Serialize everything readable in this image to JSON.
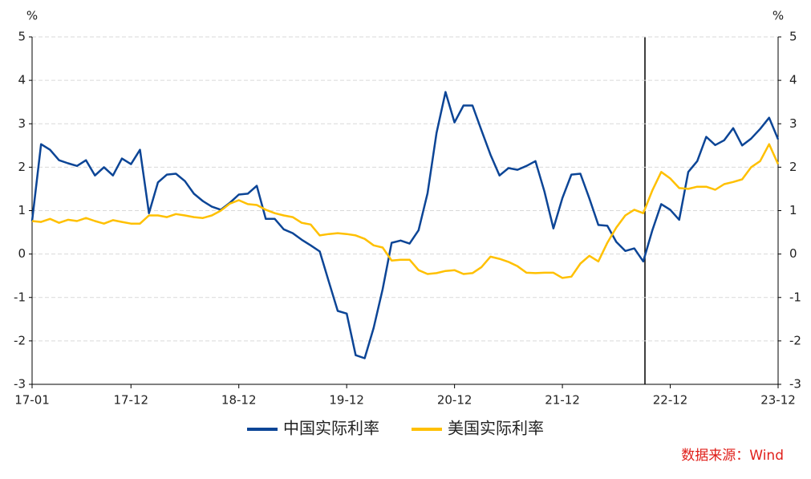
{
  "chart_data": {
    "type": "line",
    "y_label": "%",
    "y2_label": "%",
    "categories": [
      "17-01",
      null,
      null,
      null,
      null,
      null,
      null,
      null,
      null,
      null,
      null,
      "17-12",
      null,
      null,
      null,
      null,
      null,
      null,
      null,
      null,
      null,
      null,
      null,
      "18-12",
      null,
      null,
      null,
      null,
      null,
      null,
      null,
      null,
      null,
      null,
      null,
      "19-12",
      null,
      null,
      null,
      null,
      null,
      null,
      null,
      null,
      null,
      null,
      null,
      "20-12",
      null,
      null,
      null,
      null,
      null,
      null,
      null,
      null,
      null,
      null,
      null,
      "21-12",
      null,
      null,
      null,
      null,
      null,
      null,
      null,
      null,
      null,
      null,
      null,
      "22-12",
      null,
      null,
      null,
      null,
      null,
      null,
      null,
      null,
      null,
      null,
      null,
      "23-12"
    ],
    "series": [
      {
        "name": "中国实际利率",
        "color": "#0c4596",
        "values": [
          0.76,
          2.53,
          2.4,
          2.16,
          2.09,
          2.03,
          2.16,
          1.81,
          2.0,
          1.81,
          2.2,
          2.07,
          2.4,
          0.94,
          1.65,
          1.83,
          1.85,
          1.68,
          1.39,
          1.22,
          1.09,
          1.02,
          1.18,
          1.37,
          1.39,
          1.57,
          0.81,
          0.81,
          0.57,
          0.48,
          0.33,
          0.2,
          0.06,
          -0.63,
          -1.31,
          -1.37,
          -2.33,
          -2.4,
          -1.7,
          -0.81,
          0.26,
          0.31,
          0.24,
          0.55,
          1.4,
          2.79,
          3.73,
          3.03,
          3.42,
          3.42,
          2.85,
          2.29,
          1.81,
          1.98,
          1.94,
          2.03,
          2.14,
          1.44,
          0.59,
          1.29,
          1.83,
          1.85,
          1.28,
          0.67,
          0.65,
          0.28,
          0.07,
          0.13,
          -0.17,
          0.54,
          1.15,
          1.02,
          0.79,
          1.89,
          2.14,
          2.7,
          2.51,
          2.62,
          2.9,
          2.5,
          2.66,
          2.88,
          3.14,
          2.64
        ]
      },
      {
        "name": "美国实际利率",
        "color": "#ffc000",
        "values": [
          0.76,
          0.74,
          0.81,
          0.72,
          0.79,
          0.76,
          0.83,
          0.76,
          0.7,
          0.78,
          0.74,
          0.7,
          0.7,
          0.89,
          0.89,
          0.85,
          0.92,
          0.89,
          0.85,
          0.83,
          0.89,
          1.0,
          1.16,
          1.24,
          1.15,
          1.13,
          1.02,
          0.94,
          0.89,
          0.85,
          0.72,
          0.68,
          0.43,
          0.46,
          0.48,
          0.46,
          0.43,
          0.35,
          0.2,
          0.15,
          -0.15,
          -0.13,
          -0.13,
          -0.37,
          -0.46,
          -0.44,
          -0.39,
          -0.37,
          -0.46,
          -0.44,
          -0.3,
          -0.06,
          -0.11,
          -0.18,
          -0.28,
          -0.43,
          -0.44,
          -0.43,
          -0.43,
          -0.55,
          -0.52,
          -0.22,
          -0.04,
          -0.17,
          0.26,
          0.61,
          0.89,
          1.02,
          0.94,
          1.46,
          1.89,
          1.74,
          1.52,
          1.5,
          1.55,
          1.55,
          1.48,
          1.61,
          1.66,
          1.72,
          2.0,
          2.14,
          2.53,
          2.07
        ]
      }
    ],
    "ylim": [
      -3,
      5
    ],
    "yticks": [
      -3,
      -2,
      -1,
      0,
      1,
      2,
      3,
      4,
      5
    ],
    "y2lim": [
      -3,
      5
    ],
    "y2ticks": [
      -3,
      -2,
      -1,
      0,
      1,
      2,
      3,
      4,
      5
    ],
    "grid": true,
    "legend": "bottom",
    "source": "数据来源：Wind"
  }
}
